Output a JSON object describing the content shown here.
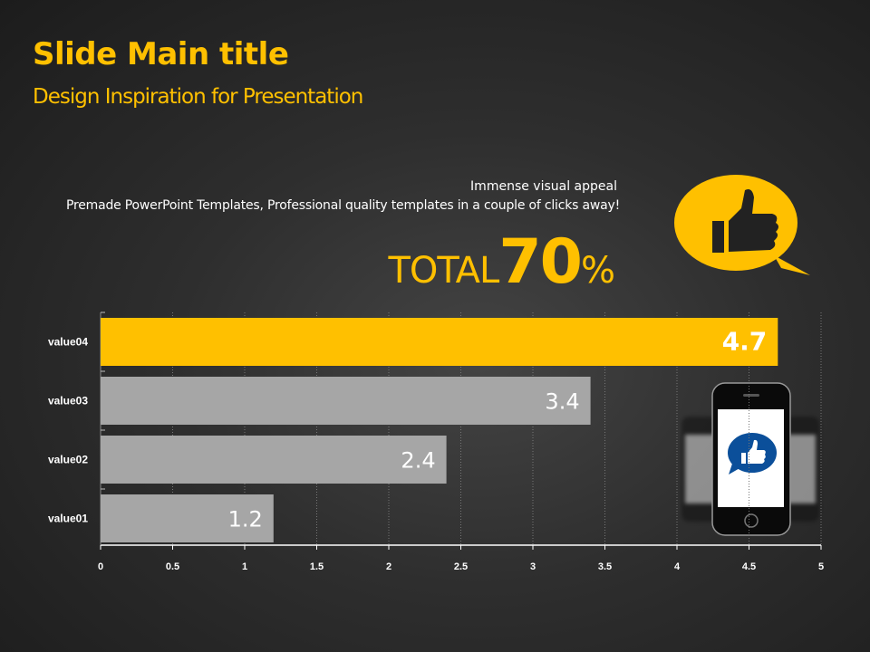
{
  "header": {
    "title": "Slide Main title",
    "subtitle": "Design Inspiration for Presentation"
  },
  "tagline": {
    "line1": "Immense  visual  appeal",
    "line2": "Premade PowerPoint Templates, Professional quality templates in a couple of clicks away!"
  },
  "total": {
    "word": "TOTAL",
    "number": "70",
    "percent": "%"
  },
  "colors": {
    "accent": "#ffc000",
    "bar": "#a6a6a6",
    "icon_blue": "#0b4f9a"
  },
  "icons": [
    "thumbs-up-bubble-icon",
    "smartphone-icon"
  ],
  "chart_data": {
    "type": "bar",
    "orientation": "horizontal",
    "categories": [
      "value01",
      "value02",
      "value03",
      "value04"
    ],
    "values": [
      1.2,
      2.4,
      3.4,
      4.7
    ],
    "labels": [
      "1.2",
      "2.4",
      "3.4",
      "4.7"
    ],
    "highlight": "value04",
    "xlim": [
      0,
      5
    ],
    "xticks": [
      "0",
      "0.5",
      "1",
      "1.5",
      "2",
      "2.5",
      "3",
      "3.5",
      "4",
      "4.5",
      "5"
    ],
    "grid": "vertical dotted"
  }
}
